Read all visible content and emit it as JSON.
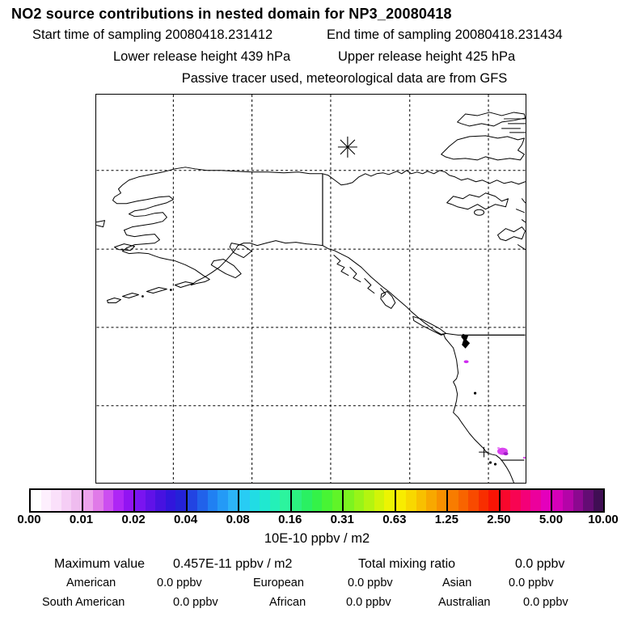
{
  "header": {
    "title": "NO2 source contributions in nested domain for NP3_20080418",
    "start_time": "Start time of sampling 20080418.231412",
    "end_time": "End time of sampling 20080418.231434",
    "lower_release": "Lower release height  439 hPa",
    "upper_release": "Upper release height  425 hPa",
    "tracer_note": "Passive tracer used, meteorological data are from GFS"
  },
  "colorbar": {
    "tick_labels": [
      "0.00",
      "0.01",
      "0.02",
      "0.04",
      "0.08",
      "0.16",
      "0.31",
      "0.63",
      "1.25",
      "2.50",
      "5.00",
      "10.00"
    ],
    "unit_label": "10E-10 ppbv / m2",
    "segments": [
      [
        "#ffffff",
        "#fdeffd",
        "#fae0fa",
        "#f5cef5",
        "#efbcef"
      ],
      [
        "#eda3ed",
        "#e07ae8",
        "#cc4ef0",
        "#ae26f5",
        "#9214f2"
      ],
      [
        "#7a14f0",
        "#6012e8",
        "#4712e0",
        "#3116dc",
        "#2422d8"
      ],
      [
        "#2244e2",
        "#2162ea",
        "#2080f2",
        "#249af6",
        "#2cb4f8"
      ],
      [
        "#28ccf4",
        "#22dce4",
        "#20e8d0",
        "#24f0b8",
        "#2cf49e"
      ],
      [
        "#2cf080",
        "#2af062",
        "#34f248",
        "#48f434",
        "#60f428"
      ],
      [
        "#7cf420",
        "#98f418",
        "#b4f410",
        "#d2f408",
        "#ecf402"
      ],
      [
        "#f8ec00",
        "#f8d800",
        "#f8c000",
        "#f8a800",
        "#f89000"
      ],
      [
        "#f87c00",
        "#f86400",
        "#f84a00",
        "#f82e00",
        "#f81404"
      ],
      [
        "#f8082c",
        "#f80452",
        "#f40078",
        "#ec009c",
        "#e400bc"
      ],
      [
        "#d400b8",
        "#b404a8",
        "#8c0890",
        "#640c74",
        "#400e54"
      ]
    ],
    "hotspot_color": "#cf2df0"
  },
  "stats": {
    "max_label": "Maximum value",
    "max_value": "0.457E-11 ppbv / m2",
    "total_label": "Total mixing ratio",
    "total_value": "0.0 ppbv",
    "regions": [
      {
        "label": "American",
        "value": "0.0 ppbv"
      },
      {
        "label": "European",
        "value": "0.0 ppbv"
      },
      {
        "label": "Asian",
        "value": "0.0 ppbv"
      },
      {
        "label": "South American",
        "value": "0.0 ppbv"
      },
      {
        "label": "African",
        "value": "0.0 ppbv"
      },
      {
        "label": "Australian",
        "value": "0.0 ppbv"
      }
    ]
  }
}
